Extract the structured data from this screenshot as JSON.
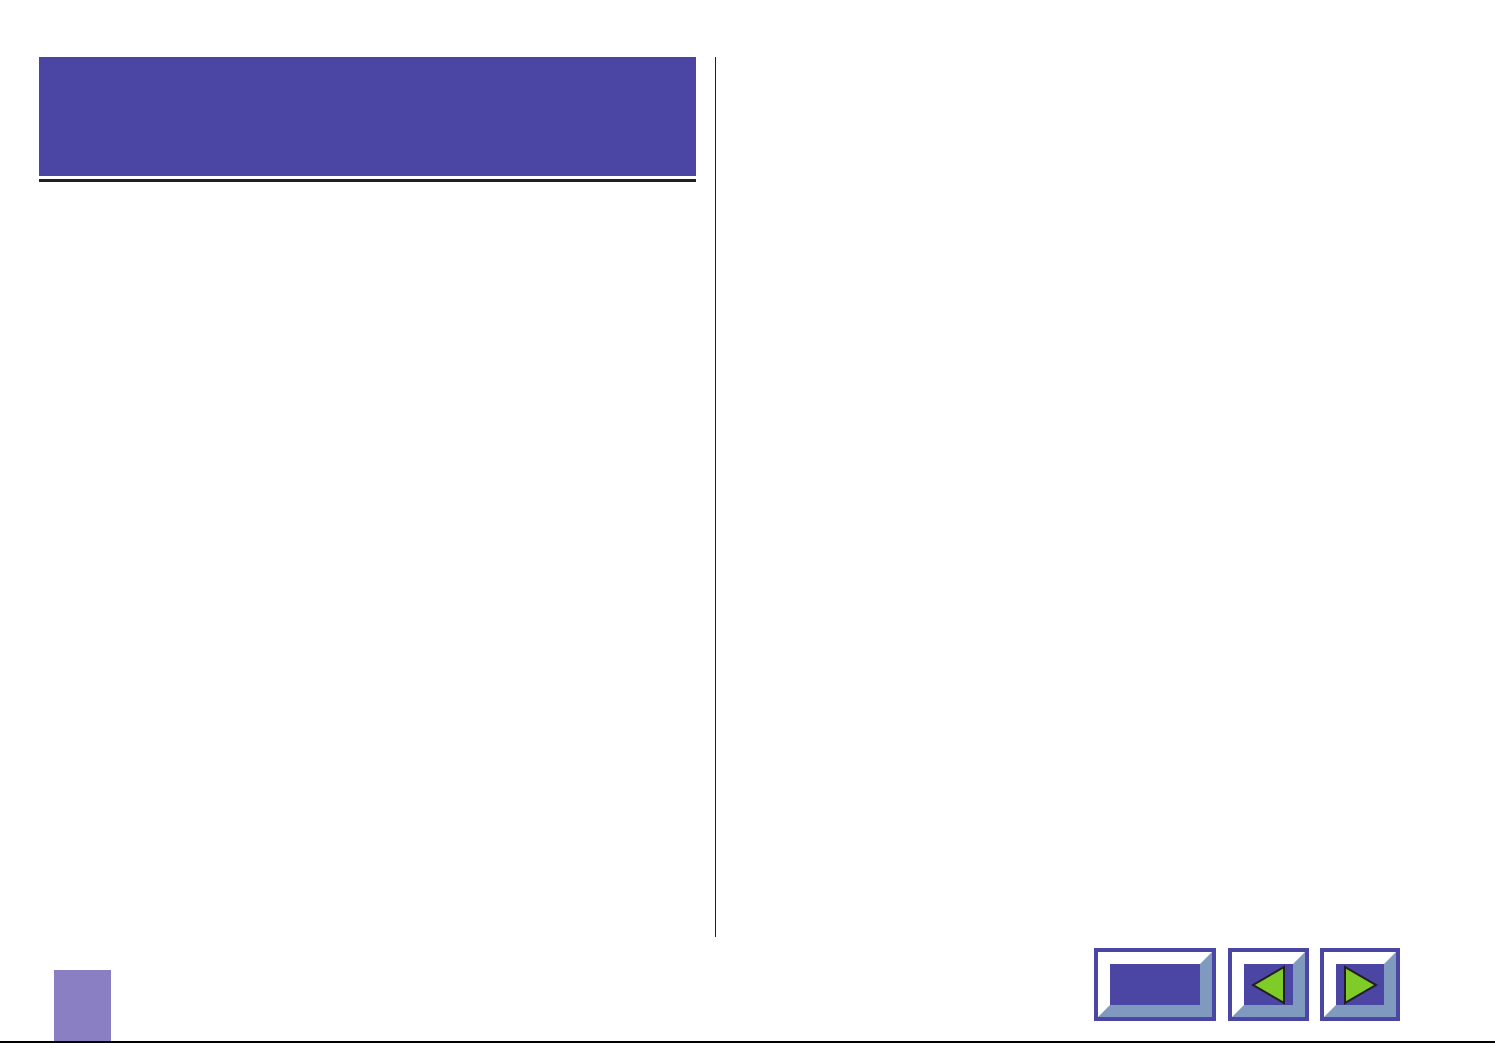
{
  "colors": {
    "header": "#4b45a3",
    "page_tab": "#8a7fc3",
    "button_border": "#4b45a3",
    "button_shadow": "#8099bf",
    "arrow": "#7fcb28"
  },
  "navigation": {
    "contents_button": {
      "icon": "blank-button-face"
    },
    "prev_button": {
      "icon": "triangle-left-icon"
    },
    "next_button": {
      "icon": "triangle-right-icon"
    }
  }
}
